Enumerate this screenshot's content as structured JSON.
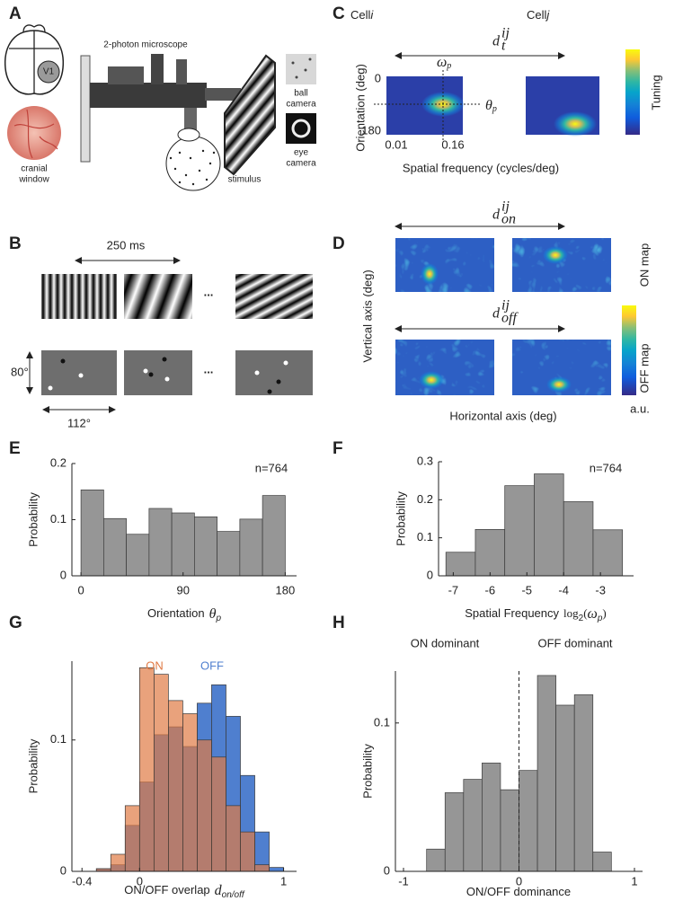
{
  "panel_labels": {
    "a": "A",
    "b": "B",
    "c": "C",
    "d": "D",
    "e": "E",
    "f": "F",
    "g": "G",
    "h": "H"
  },
  "panel_a": {
    "microscope": "2-photon microscope",
    "area": "V1",
    "window": [
      "cranial",
      "window"
    ],
    "stimulus": "stimulus",
    "ball_camera": [
      "ball",
      "camera"
    ],
    "eye_camera": [
      "eye",
      "camera"
    ]
  },
  "panel_b": {
    "duration": "250 ms",
    "ellipsis": "...",
    "height": "80°",
    "width": "112°"
  },
  "panel_c": {
    "cells": [
      {
        "name": "Cell",
        "index": "i"
      },
      {
        "name": "Cell",
        "index": "j"
      }
    ],
    "distance": {
      "symbol": "d",
      "sub": "t",
      "sup": "ij"
    },
    "peak_frequency": {
      "symbol": "ω",
      "sub": "p"
    },
    "peak_orientation": {
      "symbol": "θ",
      "sub": "p"
    },
    "ylabel": "Orientation (deg)",
    "yticks": [
      "0",
      "180"
    ],
    "xticks": [
      "0.01",
      "0.16"
    ],
    "xlabel": "Spatial frequency (cycles/deg)",
    "colorbar_label": "Tuning"
  },
  "panel_d": {
    "distance_on": {
      "symbol": "d",
      "sub": "on",
      "sup": "ij"
    },
    "distance_off": {
      "symbol": "d",
      "sub": "off",
      "sup": "ij"
    },
    "ylabel": "Vertical axis (deg)",
    "xlabel": "Horizontal axis (deg)",
    "on_label": "ON map",
    "off_label": "OFF map",
    "colorbar_unit": "a.u."
  },
  "chart_data": [
    {
      "type": "histogram",
      "xlabel": "Orientation",
      "xlabel_symbol": {
        "symbol": "θ",
        "sub": "p"
      },
      "ylabel": "Probability",
      "annotation": "n=764",
      "bins": [
        0,
        20,
        40,
        60,
        80,
        100,
        120,
        140,
        160,
        180
      ],
      "values": [
        0.153,
        0.102,
        0.074,
        0.12,
        0.112,
        0.105,
        0.079,
        0.101,
        0.143
      ],
      "color": "#969696",
      "xlim": [
        -8,
        190
      ],
      "ylim": [
        0,
        0.2
      ],
      "xticks": [
        0,
        90,
        180
      ],
      "yticks": [
        0,
        0.1,
        0.2
      ]
    },
    {
      "type": "histogram",
      "xlabel": "Spatial Frequency",
      "xlabel_symbol": {
        "text": "log",
        "sub": "2",
        "open": "(",
        "symbol": "ω",
        "sym_sub": "p",
        "close": ")"
      },
      "ylabel": "Probability",
      "annotation": "n=764",
      "bins": [
        -7.2,
        -6.4,
        -5.6,
        -4.8,
        -4,
        -3.2,
        -2.4
      ],
      "values": [
        0.062,
        0.122,
        0.237,
        0.268,
        0.195,
        0.121
      ],
      "color": "#969696",
      "xlim": [
        -7.4,
        -2.1
      ],
      "ylim": [
        0,
        0.3
      ],
      "xticks": [
        -7,
        -6,
        -5,
        -4,
        -3
      ],
      "yticks": [
        0,
        0.1,
        0.2,
        0.3
      ]
    },
    {
      "type": "histogram",
      "xlabel": "ON/OFF overlap",
      "xlabel_symbol": {
        "symbol": "d",
        "sub": "on/off"
      },
      "ylabel": "Probability",
      "bins": [
        -0.3,
        -0.2,
        -0.1,
        0,
        0.1,
        0.2,
        0.3,
        0.4,
        0.5,
        0.6,
        0.7,
        0.8,
        0.9,
        1.0
      ],
      "series": [
        {
          "name": "ON",
          "color": "#e07a45",
          "values": [
            0.002,
            0.013,
            0.05,
            0.155,
            0.15,
            0.13,
            0.12,
            0.1,
            0.087,
            0.05,
            0.03,
            0.005,
            0
          ]
        },
        {
          "name": "OFF",
          "color": "#4f7fcf",
          "values": [
            0.002,
            0.005,
            0.035,
            0.068,
            0.104,
            0.11,
            0.095,
            0.128,
            0.142,
            0.118,
            0.073,
            0.03,
            0.003
          ]
        }
      ],
      "xlim": [
        -0.47,
        1.09
      ],
      "ylim": [
        0,
        0.16
      ],
      "xticks": [
        -0.4,
        0,
        1
      ],
      "yticks": [
        0,
        0.1
      ]
    },
    {
      "type": "histogram",
      "xlabel": "ON/OFF dominance",
      "ylabel": "Probability",
      "annotations": [
        "ON dominant",
        "OFF dominant"
      ],
      "vline": 0,
      "bins": [
        -0.8,
        -0.64,
        -0.48,
        -0.32,
        -0.16,
        0,
        0.16,
        0.32,
        0.48,
        0.64,
        0.8
      ],
      "values": [
        0.015,
        0.053,
        0.062,
        0.073,
        0.055,
        0.068,
        0.132,
        0.112,
        0.119,
        0.013
      ],
      "color": "#969696",
      "xlim": [
        -1.07,
        1.07
      ],
      "ylim": [
        0,
        0.135
      ],
      "xticks": [
        -1,
        0,
        1
      ],
      "yticks": [
        0,
        0.1
      ]
    }
  ]
}
